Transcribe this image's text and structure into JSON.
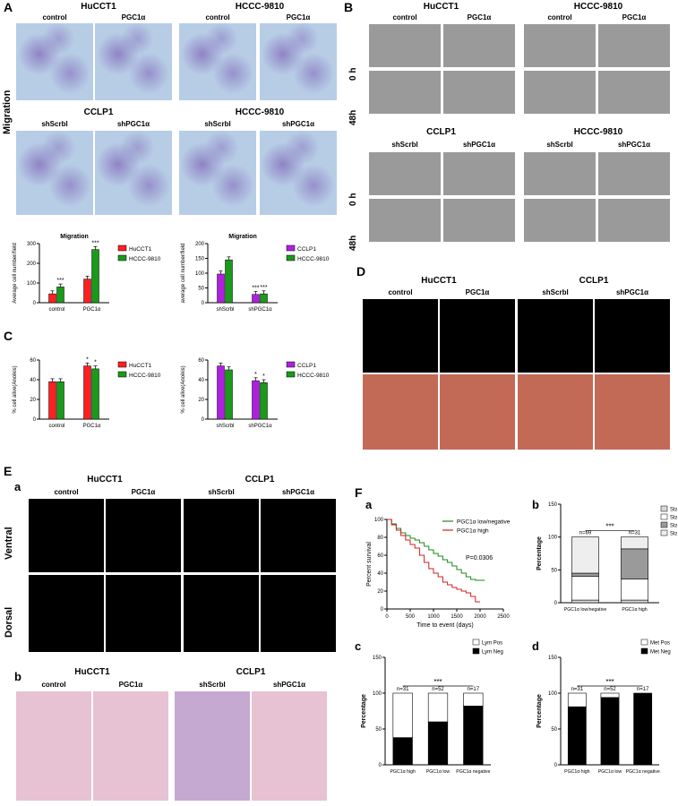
{
  "panels": {
    "A": "A",
    "B": "B",
    "C": "C",
    "D": "D",
    "E": "E",
    "F": "F"
  },
  "a_block": {
    "hucct1": "HuCCT1",
    "hccc1": "HCCC-9810",
    "cclp1": "CCLP1",
    "hccc2": "HCCC-9810",
    "control": "control",
    "pgc1a": "PGC1α",
    "shscrbl": "shScrbl",
    "shpgc1a": "shPGC1α",
    "migration_side": "Migration"
  },
  "b_block": {
    "hucct1": "HuCCT1",
    "hccc1": "HCCC-9810",
    "cclp1": "CCLP1",
    "hccc2": "HCCC-9810",
    "t0": "0 h",
    "t48": "48h"
  },
  "d_block": {
    "hucct1": "HuCCT1",
    "cclp1": "CCLP1"
  },
  "e_block": {
    "sub_a": "a",
    "sub_b": "b",
    "hucct1": "HuCCT1",
    "cclp1": "CCLP1",
    "ventral": "Ventral",
    "dorsal": "Dorsal"
  },
  "f_block": {
    "sub_a": "a",
    "sub_b": "b",
    "sub_c": "c",
    "sub_d": "d"
  },
  "chart_data": [
    {
      "id": "A1",
      "type": "bar",
      "title": "Migration",
      "ylabel": "Average cell number/field",
      "ylim": [
        0,
        300
      ],
      "yticks": [
        0,
        100,
        200,
        300
      ],
      "categories": [
        "control",
        "PGC1α"
      ],
      "series": [
        {
          "name": "HuCCT1",
          "color": "#ff2020",
          "values": [
            45,
            120
          ]
        },
        {
          "name": "HCCC-9810",
          "color": "#1a9a1a",
          "values": [
            80,
            270
          ]
        }
      ],
      "annotations": [
        "",
        "***",
        "",
        "***"
      ]
    },
    {
      "id": "A2",
      "type": "bar",
      "title": "Migration",
      "ylabel": "average cell number/field",
      "ylim": [
        0,
        200
      ],
      "yticks": [
        0,
        50,
        100,
        150,
        200
      ],
      "categories": [
        "shScrbl",
        "shPGC1α"
      ],
      "series": [
        {
          "name": "CCLP1",
          "color": "#b020e0",
          "values": [
            97,
            28
          ]
        },
        {
          "name": "HCCC-9810",
          "color": "#1a9a1a",
          "values": [
            145,
            30
          ]
        }
      ],
      "annotations": [
        "",
        "",
        "***",
        "***"
      ]
    },
    {
      "id": "C1",
      "type": "bar",
      "title": "",
      "ylabel": "% cell alive(Anoikis)",
      "ylim": [
        0,
        60
      ],
      "yticks": [
        0,
        20,
        40,
        60
      ],
      "categories": [
        "control",
        "PGC1α"
      ],
      "series": [
        {
          "name": "HuCCT1",
          "color": "#ff2020",
          "values": [
            38,
            54
          ]
        },
        {
          "name": "HCCC-9810",
          "color": "#1a9a1a",
          "values": [
            38,
            51
          ]
        }
      ],
      "annotations": [
        "",
        "",
        "*",
        "*"
      ]
    },
    {
      "id": "C2",
      "type": "bar",
      "title": "",
      "ylabel": "% cell alive(Anoikis)",
      "ylim": [
        0,
        60
      ],
      "yticks": [
        0,
        20,
        40,
        60
      ],
      "categories": [
        "shScrbl",
        "shPGC1α"
      ],
      "series": [
        {
          "name": "CCLP1",
          "color": "#b020e0",
          "values": [
            54,
            39
          ]
        },
        {
          "name": "HCCC-9810",
          "color": "#1a9a1a",
          "values": [
            50,
            37
          ]
        }
      ],
      "annotations": [
        "",
        "",
        "*",
        "*"
      ]
    },
    {
      "id": "Fa",
      "type": "line",
      "title": "",
      "xlabel": "Time to event (days)",
      "ylabel": "Percent survival",
      "xlim": [
        0,
        2500
      ],
      "ylim": [
        0,
        100
      ],
      "xticks": [
        0,
        500,
        1000,
        1500,
        2000,
        2500
      ],
      "yticks": [
        0,
        20,
        40,
        60,
        80,
        100
      ],
      "series": [
        {
          "name": "PGC1α low/negative",
          "color": "#1a8a1a",
          "x": [
            0,
            100,
            200,
            300,
            400,
            500,
            600,
            700,
            800,
            900,
            1000,
            1100,
            1200,
            1300,
            1400,
            1500,
            1600,
            1700,
            1800,
            1900,
            2000,
            2100
          ],
          "y": [
            100,
            95,
            90,
            85,
            82,
            79,
            77,
            74,
            70,
            66,
            62,
            59,
            55,
            52,
            48,
            44,
            40,
            36,
            33,
            32,
            32,
            32
          ]
        },
        {
          "name": "PGC1α high",
          "color": "#d02020",
          "x": [
            0,
            100,
            200,
            300,
            400,
            500,
            600,
            700,
            800,
            900,
            1000,
            1100,
            1200,
            1300,
            1400,
            1500,
            1600,
            1700,
            1800,
            1900,
            2000
          ],
          "y": [
            100,
            94,
            88,
            82,
            77,
            72,
            68,
            60,
            52,
            45,
            40,
            36,
            30,
            27,
            24,
            22,
            20,
            18,
            14,
            8,
            8
          ]
        }
      ],
      "annotation": "P=0.0306"
    },
    {
      "id": "Fb",
      "type": "bar",
      "title": "",
      "ylabel": "Percentage",
      "ylim": [
        0,
        150
      ],
      "yticks": [
        0,
        50,
        100,
        150
      ],
      "categories": [
        "PGC1α low/negative",
        "PGC1α high"
      ],
      "n": [
        "n=69",
        "n=31"
      ],
      "sig": "***",
      "series": [
        {
          "name": "Stage I",
          "values": [
            4,
            4
          ]
        },
        {
          "name": "Stage II",
          "values": [
            36,
            32
          ]
        },
        {
          "name": "Stage III",
          "values": [
            5,
            46
          ]
        },
        {
          "name": "Stage IV",
          "values": [
            55,
            18
          ]
        }
      ]
    },
    {
      "id": "Fc",
      "type": "bar",
      "title": "",
      "ylabel": "Percentage",
      "ylim": [
        0,
        150
      ],
      "yticks": [
        0,
        50,
        100,
        150
      ],
      "categories": [
        "PGC1α high",
        "PGC1α low",
        "PGC1α negative"
      ],
      "n": [
        "n=31",
        "n=52",
        "n=17"
      ],
      "sig": "***",
      "series": [
        {
          "name": "Lym Pos",
          "values": [
            62,
            40,
            18
          ]
        },
        {
          "name": "Lym Neg",
          "values": [
            38,
            60,
            82
          ]
        }
      ]
    },
    {
      "id": "Fd",
      "type": "bar",
      "title": "",
      "ylabel": "Percentage",
      "ylim": [
        0,
        150
      ],
      "yticks": [
        0,
        50,
        100,
        150
      ],
      "categories": [
        "PGC1α high",
        "PGC1α low",
        "PGC1α negative"
      ],
      "n": [
        "n=31",
        "n=52",
        "n=17"
      ],
      "sig": "***",
      "series": [
        {
          "name": "Met Pos",
          "values": [
            19,
            6,
            0
          ]
        },
        {
          "name": "Met Neg",
          "values": [
            81,
            94,
            100
          ]
        }
      ]
    }
  ]
}
